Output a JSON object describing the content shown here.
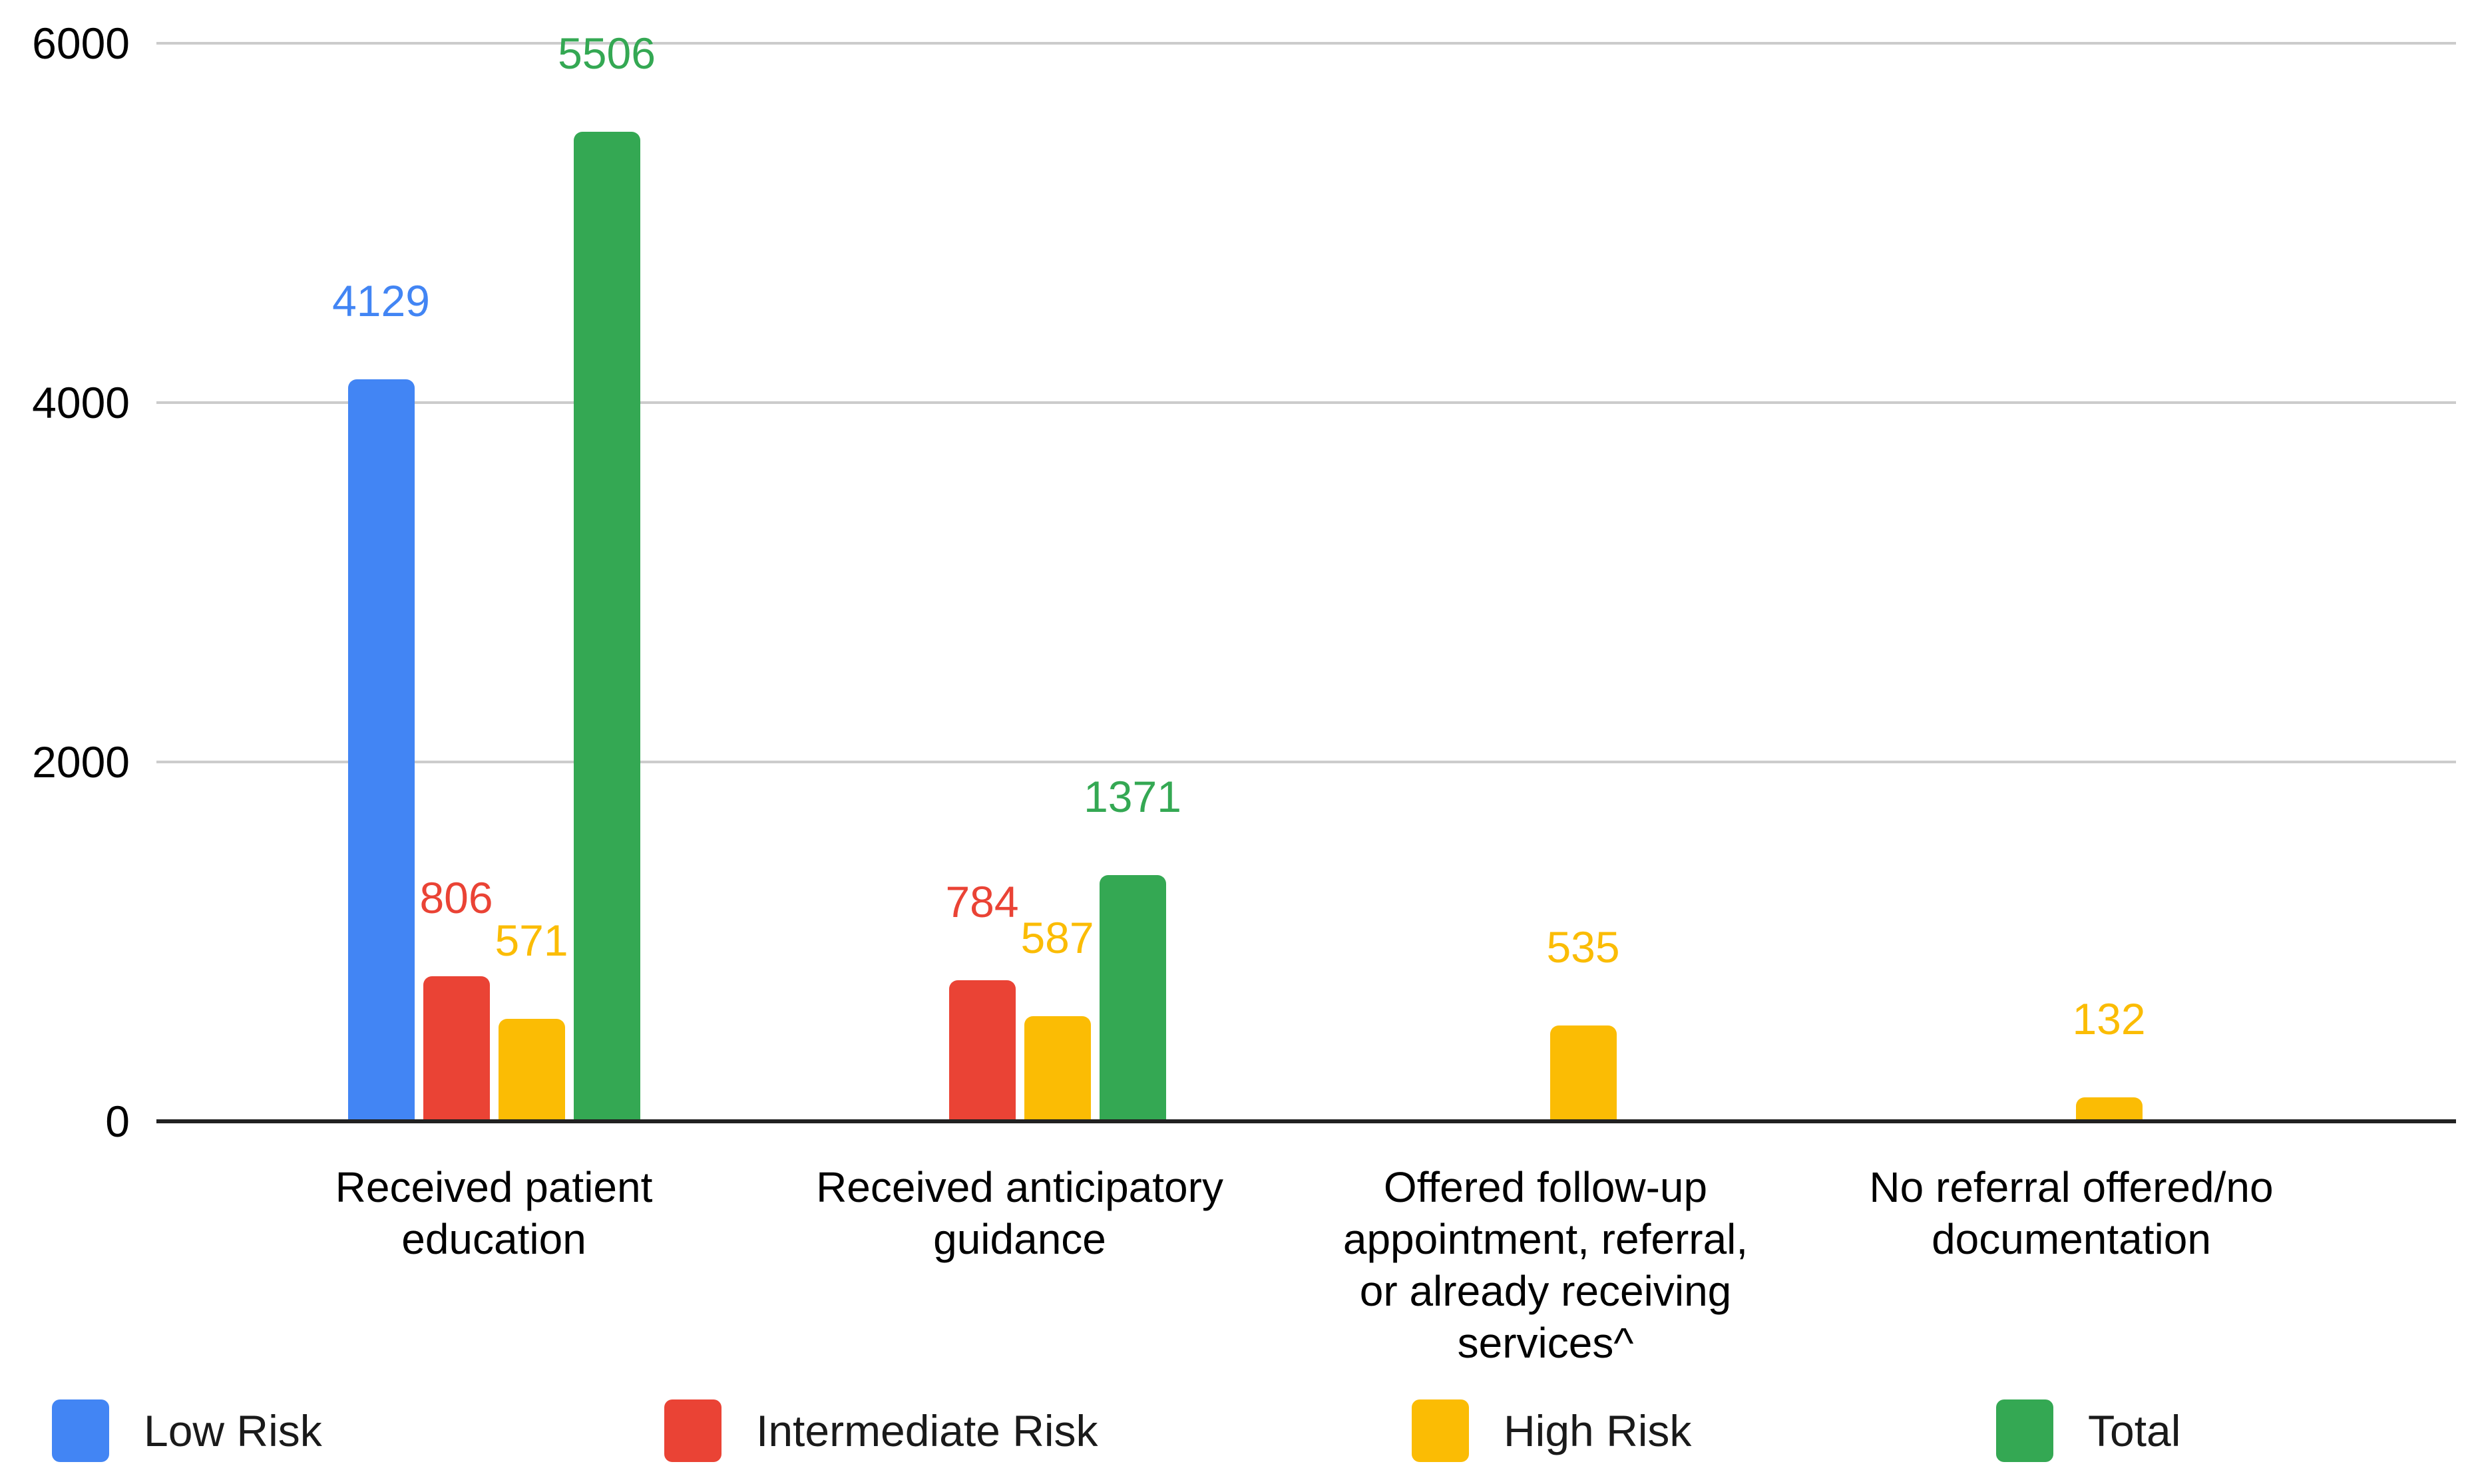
{
  "chart_data": {
    "type": "bar",
    "title": "",
    "categories": [
      "Received patient\neducation",
      "Received anticipatory\nguidance",
      "Offered follow-up\nappointment, referral,\nor already receiving\nservices^",
      "No referral offered/no\ndocumentation"
    ],
    "series": [
      {
        "name": "Low Risk",
        "color": "#4285F4",
        "values": [
          4129,
          null,
          null,
          null
        ]
      },
      {
        "name": "Intermediate Risk",
        "color": "#EA4335",
        "values": [
          806,
          784,
          null,
          null
        ]
      },
      {
        "name": "High Risk",
        "color": "#FBBC04",
        "values": [
          571,
          587,
          535,
          132
        ]
      },
      {
        "name": "Total",
        "color": "#34A853",
        "values": [
          5506,
          1371,
          null,
          null
        ]
      }
    ],
    "y_axis": {
      "ticks": [
        0,
        2000,
        4000,
        6000
      ],
      "ylim": [
        0,
        6000
      ],
      "grid": true
    },
    "legend": {
      "position": "bottom"
    },
    "annotations": {
      "shown": true,
      "style": "value label above each bar in its series color"
    }
  },
  "colors": {
    "background": "#FFFFFF",
    "gridline": "#CCCCCC",
    "axis_line": "#212121",
    "text": "#000000"
  }
}
